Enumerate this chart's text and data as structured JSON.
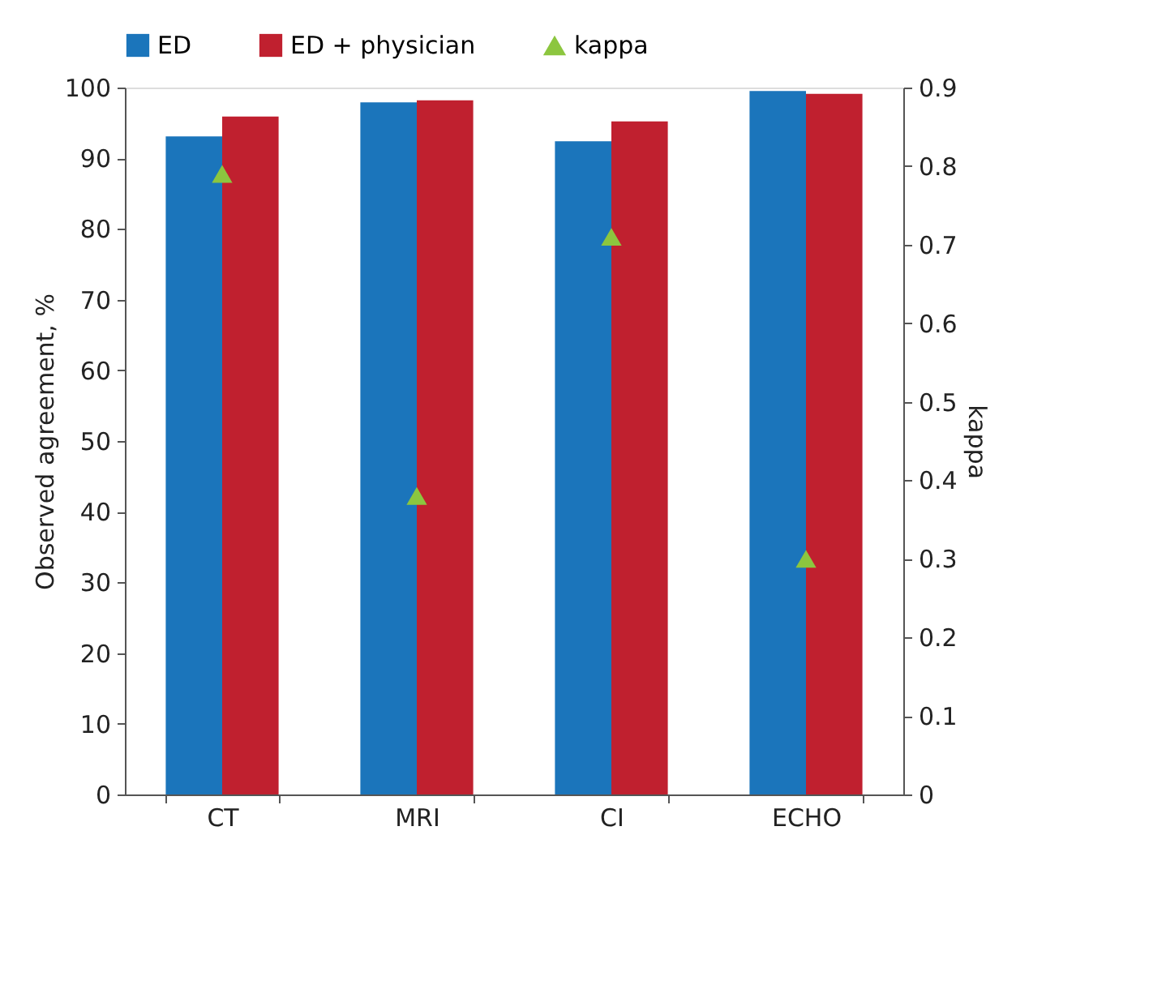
{
  "chart_data": {
    "type": "bar",
    "ylabel": "Observed agreement, %",
    "y2label": "kappa",
    "categories": [
      "CT",
      "MRI",
      "CI",
      "ECHO"
    ],
    "series": [
      {
        "name": "ED",
        "color": "#1b75bb",
        "values": [
          93.1,
          97.9,
          92.4,
          99.5
        ]
      },
      {
        "name": "ED + physician",
        "color": "#c0202f",
        "values": [
          95.9,
          98.2,
          95.2,
          99.1
        ]
      },
      {
        "name": "kappa",
        "type": "scatter",
        "axis": "y2",
        "color": "#8cc63f",
        "marker": "triangle",
        "values": [
          0.79,
          0.38,
          0.71,
          0.3
        ]
      }
    ],
    "ylim": [
      0,
      100
    ],
    "yticks": [
      0,
      10,
      20,
      30,
      40,
      50,
      60,
      70,
      80,
      90,
      100
    ],
    "y2lim": [
      0,
      0.9
    ],
    "y2ticks": [
      0,
      0.1,
      0.2,
      0.3,
      0.4,
      0.5,
      0.6,
      0.7,
      0.8,
      0.9
    ],
    "grid": false,
    "legend": "top"
  }
}
